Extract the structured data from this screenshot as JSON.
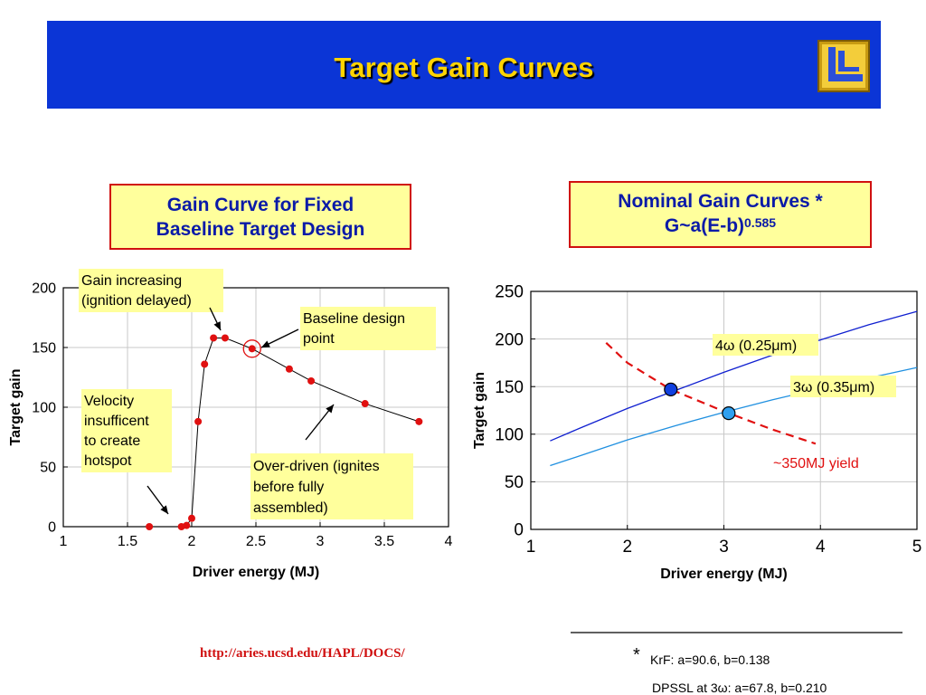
{
  "slide": {
    "title": "Target Gain Curves",
    "url": "http://aries.ucsd.edu/HAPL/DOCS/",
    "footnote_star": "*",
    "footnote_lines": [
      "KrF: a=90.6, b=0.138",
      "DPSSL at 3ω: a=67.8, b=0.210"
    ]
  },
  "left_box": {
    "line1": "Gain Curve for Fixed",
    "line2": "Baseline Target Design"
  },
  "right_box": {
    "line1": "Nominal Gain Curves *",
    "formula": "G~a(E-b)",
    "exponent": "0.585"
  },
  "colors": {
    "banner": "#0b35d6",
    "title": "#ffd400",
    "box_fill": "#ffff9c",
    "box_border": "#d01010",
    "box_text": "#0a1aa8"
  },
  "chart_data": [
    {
      "type": "line",
      "title": "Gain Curve for Fixed Baseline Target Design",
      "xlabel": "Driver energy (MJ)",
      "ylabel": "Target gain",
      "xlim": [
        1,
        4
      ],
      "ylim": [
        0,
        200
      ],
      "xticks": [
        "1",
        "1.5",
        "2",
        "2.5",
        "3",
        "3.5",
        "4"
      ],
      "yticks": [
        "0",
        "50",
        "100",
        "150",
        "200"
      ],
      "grid": true,
      "series": [
        {
          "color": "#e01010",
          "points": [
            [
              1.67,
              0
            ],
            [
              1.92,
              0
            ],
            [
              1.96,
              1
            ],
            [
              2.0,
              7
            ],
            [
              2.05,
              88
            ],
            [
              2.1,
              136
            ],
            [
              2.17,
              158
            ],
            [
              2.26,
              158
            ],
            [
              2.47,
              149
            ],
            [
              2.76,
              132
            ],
            [
              2.93,
              122
            ],
            [
              3.35,
              103
            ],
            [
              3.77,
              88
            ]
          ]
        }
      ],
      "highlight": [
        2.47,
        149
      ],
      "annotations": [
        {
          "lines": [
            "Gain increasing",
            "(ignition delayed)"
          ]
        },
        {
          "lines": [
            "Baseline design",
            "point"
          ]
        },
        {
          "lines": [
            "Velocity",
            "insufficent",
            "to create",
            "hotspot"
          ]
        },
        {
          "lines": [
            "Over-driven (ignites",
            "before fully",
            "assembled)"
          ]
        }
      ]
    },
    {
      "type": "line",
      "title": "Nominal Gain Curves *",
      "xlabel": "Driver energy (MJ)",
      "ylabel": "Target gain",
      "xlim": [
        1,
        5
      ],
      "ylim": [
        0,
        250
      ],
      "xticks": [
        "1",
        "2",
        "3",
        "4",
        "5"
      ],
      "yticks": [
        "0",
        "50",
        "100",
        "150",
        "200",
        "250"
      ],
      "grid": true,
      "series": [
        {
          "name": "4ω (0.25μm)",
          "color": "#1020d0",
          "x": [
            1.2,
            1.5,
            2.0,
            2.5,
            3.0,
            3.5,
            4.0,
            4.5,
            5.0
          ],
          "y": [
            93,
            106,
            127,
            146,
            165,
            183,
            199,
            215,
            229
          ]
        },
        {
          "name": "3ω (0.35μm)",
          "color": "#2090e0",
          "x": [
            1.2,
            1.5,
            2.0,
            2.5,
            3.0,
            3.5,
            4.0,
            4.5,
            5.0
          ],
          "y": [
            67,
            77,
            94,
            109,
            123,
            136,
            148,
            159,
            170
          ]
        },
        {
          "name": "~350MJ yield",
          "color": "#e01010",
          "dashed": true,
          "x": [
            1.78,
            2.0,
            2.45,
            3.0,
            3.5,
            3.95
          ],
          "y": [
            196,
            175,
            147,
            124,
            105,
            90
          ]
        }
      ],
      "markers": [
        {
          "x": 2.45,
          "y": 147,
          "color": "#1040e0"
        },
        {
          "x": 3.05,
          "y": 122,
          "color": "#30a0f0"
        }
      ]
    }
  ]
}
